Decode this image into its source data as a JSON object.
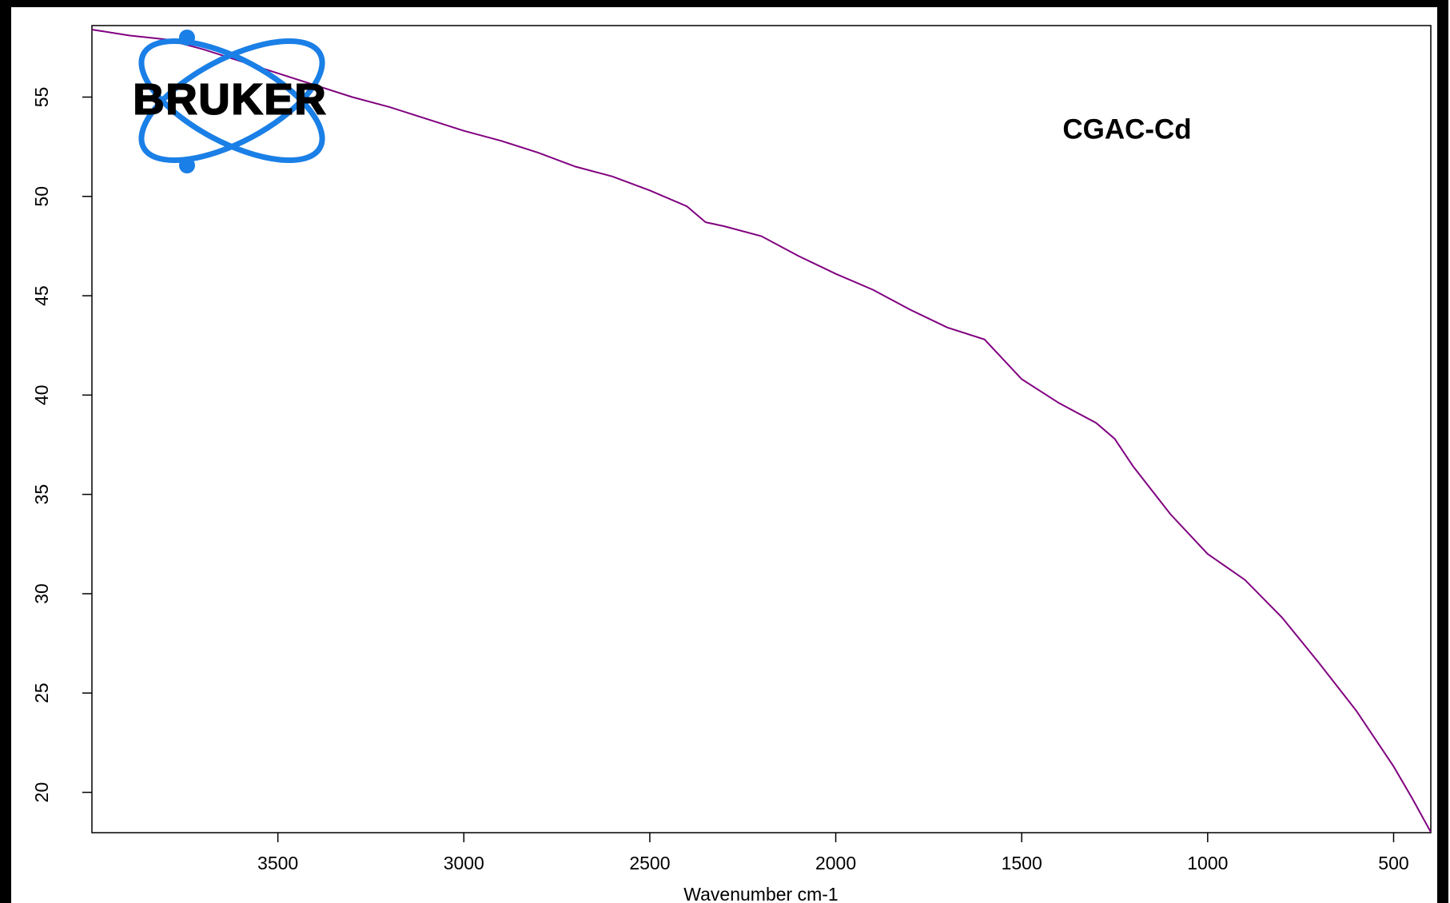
{
  "chart_data": {
    "type": "line",
    "logo": "BRUKER",
    "annotation": "CGAC-Cd",
    "x_label": "Wavenumber cm-1",
    "color": "#800080",
    "x": [
      4000,
      3900,
      3800,
      3700,
      3600,
      3500,
      3400,
      3300,
      3200,
      3100,
      3000,
      2900,
      2800,
      2700,
      2600,
      2500,
      2400,
      2350,
      2300,
      2200,
      2100,
      2000,
      1900,
      1800,
      1700,
      1600,
      1550,
      1500,
      1400,
      1300,
      1250,
      1200,
      1100,
      1000,
      900,
      800,
      700,
      600,
      500,
      450,
      400
    ],
    "values": [
      58.4,
      58.1,
      57.9,
      57.4,
      56.8,
      56.2,
      55.6,
      55.0,
      54.5,
      53.9,
      53.3,
      52.8,
      52.2,
      51.5,
      51.0,
      50.3,
      49.5,
      48.7,
      48.5,
      48.0,
      47.0,
      46.1,
      45.3,
      44.3,
      43.4,
      42.8,
      41.8,
      40.8,
      39.6,
      38.6,
      37.8,
      36.4,
      34.0,
      32.0,
      30.7,
      28.8,
      26.5,
      24.1,
      21.3,
      19.7,
      18.0
    ],
    "xlim": [
      4000,
      400
    ],
    "ylim": [
      17.97,
      58.6
    ],
    "xticks": [
      3500,
      3000,
      2500,
      2000,
      1500,
      1000,
      500
    ],
    "yticks": [
      20,
      25,
      30,
      35,
      40,
      45,
      50,
      55
    ]
  }
}
